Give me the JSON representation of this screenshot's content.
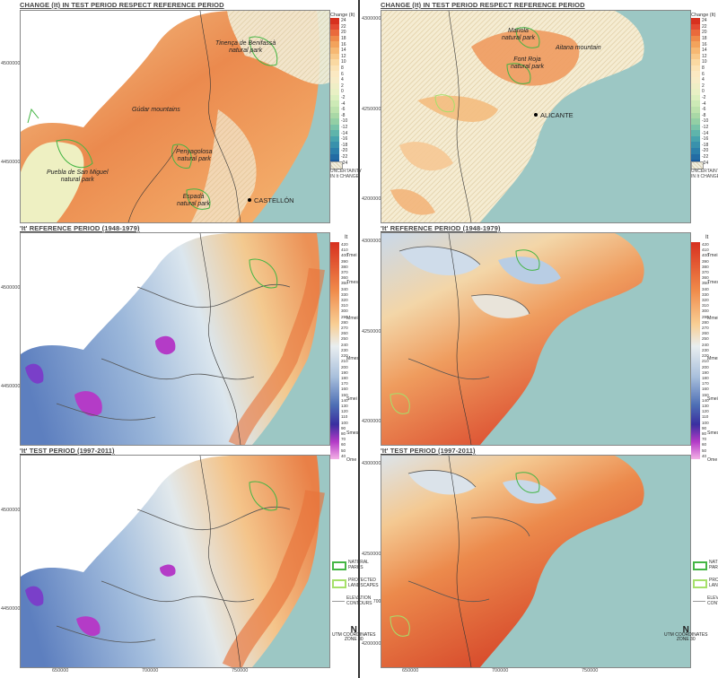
{
  "colors": {
    "sea": "#9cc7c4",
    "change_high": "#e8733a",
    "change_mid": "#f4c487",
    "change_low": "#e8edb8",
    "park_green": "#44b544",
    "landscape_green": "#a6e06a"
  },
  "left": {
    "change_title": "CHANGE (It) IN TEST PERIOD RESPECT REFERENCE PERIOD",
    "ref_title": "'It' REFERENCE PERIOD (1948-1979)",
    "test_title": "'It' TEST PERIOD (1997-2011)",
    "y_ticks_top": [
      "4500000",
      "4450000"
    ],
    "y_ticks_mid": [
      "4500000",
      "4450000"
    ],
    "y_ticks_bot": [
      "4500000",
      "4450000"
    ],
    "x_ticks": [
      "650000",
      "700000",
      "750000"
    ],
    "labels": {
      "tinenca": "Tinença de Benifassà\nnatural park",
      "gudar": "Gúdar mountains",
      "penyagolosa": "Penyagolosa\nnatural park",
      "puebla": "Puebla de San Miguel\nnatural park",
      "espada": "Espadà\nnatural park",
      "city": "CASTELLÓN"
    }
  },
  "right": {
    "change_title": "CHANGE (It) IN TEST PERIOD RESPECT REFERENCE PERIOD",
    "ref_title": "'It' REFERENCE PERIOD (1948-1979)",
    "test_title": "'It' TEST PERIOD (1997-2011)",
    "y_ticks_top": [
      "4300000",
      "4250000",
      "4200000"
    ],
    "y_ticks_mid": [
      "4300000",
      "4250000",
      "4200000"
    ],
    "y_ticks_bot": [
      "4300000",
      "4250000",
      "4200000"
    ],
    "x_ticks": [
      "650000",
      "700000",
      "750000"
    ],
    "labels": {
      "mariola": "Mariola\nnatural park",
      "aitana": "Aitana mountain",
      "fontroja": "Font Roja\nnatural park",
      "city": "ALICANTE"
    }
  },
  "change_legend": {
    "title": "Change (It)",
    "values": [
      "24",
      "22",
      "20",
      "18",
      "16",
      "14",
      "12",
      "10",
      "8",
      "6",
      "4",
      "2",
      "0",
      "-2",
      "-4",
      "-6",
      "-8",
      "-10",
      "-12",
      "-14",
      "-16",
      "-18",
      "-20",
      "-22",
      "-24"
    ],
    "swatch_colors": [
      "#d7301f",
      "#e34a33",
      "#ea6a3c",
      "#ef8a4a",
      "#f3a35c",
      "#f6b873",
      "#f8c98a",
      "#fad9a2",
      "#fbe3b5",
      "#fbe9c2",
      "#f7ecc7",
      "#efeec6",
      "#e9f0c4",
      "#dcefbe",
      "#cdeab6",
      "#bde2ad",
      "#a9d8a6",
      "#93cfa5",
      "#79c3a8",
      "#5fb4ab",
      "#48a3ad",
      "#3991ac",
      "#2c7faa",
      "#236ca4",
      "#1c5b9c"
    ],
    "uncertainty": "UNCERTAINTY\nIN It CHANGE"
  },
  "it_legend": {
    "title": "It",
    "values": [
      "420",
      "410",
      "400",
      "390",
      "380",
      "370",
      "360",
      "350",
      "340",
      "330",
      "320",
      "310",
      "300",
      "290",
      "280",
      "270",
      "260",
      "250",
      "240",
      "230",
      "220",
      "210",
      "200",
      "190",
      "180",
      "170",
      "160",
      "150",
      "140",
      "130",
      "120",
      "110",
      "100",
      "90",
      "80",
      "70",
      "60",
      "50",
      "40"
    ],
    "classes": [
      "Tmei",
      "Tmes",
      "Mmei",
      "Mmes",
      "Smei",
      "Smes",
      "Ome"
    ]
  },
  "map_keys": {
    "natural_parks": "NATURAL\nPARKS",
    "protected": "PROTECTED\nLANDSCAPES",
    "contours": "ELEVATION\nCONTOURS",
    "contours_unit": "700m",
    "utm": "UTM COORDINATES\nZONE 30",
    "north": "N"
  }
}
